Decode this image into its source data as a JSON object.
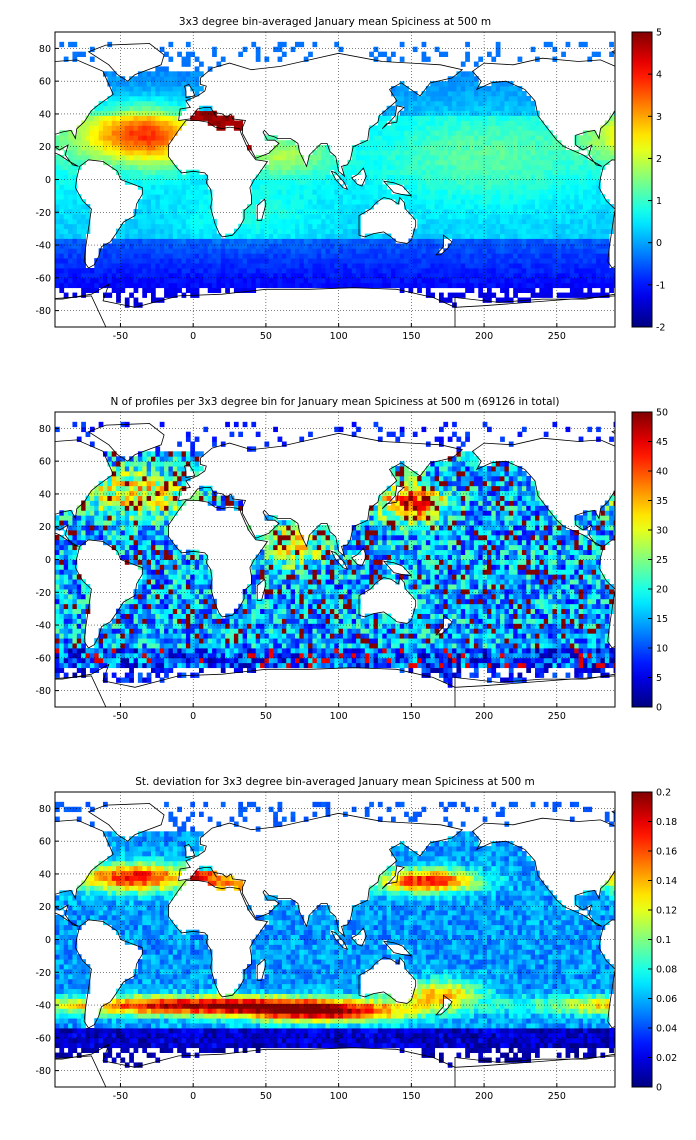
{
  "chart_data": [
    {
      "type": "heatmap",
      "title": "3x3 degree bin-averaged January mean Spiciness at 500 m",
      "xlim": [
        -95,
        290
      ],
      "ylim": [
        -90,
        90
      ],
      "xticks": [
        -50,
        0,
        50,
        100,
        150,
        200,
        250
      ],
      "yticks": [
        -80,
        -60,
        -40,
        -20,
        0,
        20,
        40,
        60,
        80
      ],
      "grid": true,
      "colorbar": {
        "range": [
          -2,
          5
        ],
        "ticks": [
          -2,
          -1,
          0,
          1,
          2,
          3,
          4,
          5
        ]
      },
      "colormap": "jet",
      "bin_size_deg": 3
    },
    {
      "type": "heatmap",
      "title": "N of profiles per 3x3 degree bin for January mean Spiciness at 500 m (69126 in total)",
      "xlim": [
        -95,
        290
      ],
      "ylim": [
        -90,
        90
      ],
      "xticks": [
        -50,
        0,
        50,
        100,
        150,
        200,
        250
      ],
      "yticks": [
        -80,
        -60,
        -40,
        -20,
        0,
        20,
        40,
        60,
        80
      ],
      "grid": true,
      "colorbar": {
        "range": [
          0,
          50
        ],
        "ticks": [
          0,
          5,
          10,
          15,
          20,
          25,
          30,
          35,
          40,
          45,
          50
        ]
      },
      "colormap": "jet",
      "bin_size_deg": 3
    },
    {
      "type": "heatmap",
      "title": "St. deviation for 3x3 degree bin-averaged January mean Spiciness at 500 m",
      "xlim": [
        -95,
        290
      ],
      "ylim": [
        -90,
        90
      ],
      "xticks": [
        -50,
        0,
        50,
        100,
        150,
        200,
        250
      ],
      "yticks": [
        -80,
        -60,
        -40,
        -20,
        0,
        20,
        40,
        60,
        80
      ],
      "grid": true,
      "colorbar": {
        "range": [
          0,
          0.2
        ],
        "ticks": [
          0,
          0.02,
          0.04,
          0.06,
          0.08,
          0.1,
          0.12,
          0.14,
          0.16,
          0.18,
          0.2
        ]
      },
      "colormap": "jet",
      "bin_size_deg": 3
    }
  ]
}
